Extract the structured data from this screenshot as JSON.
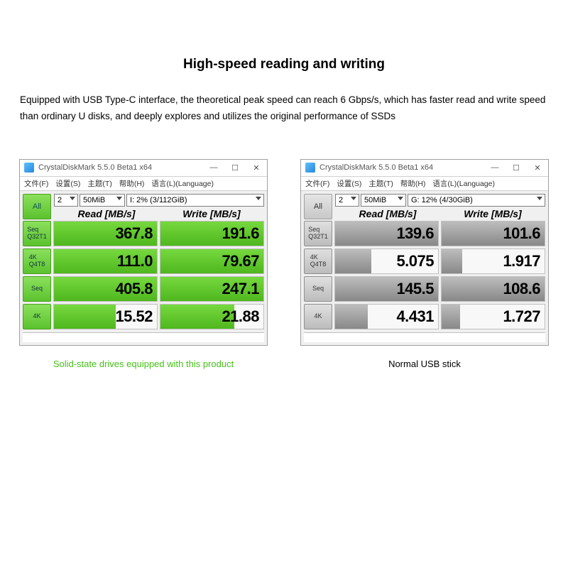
{
  "heading": "High-speed reading and writing",
  "description": "Equipped with USB Type-C interface, the theoretical peak speed can reach 6 Gbps/s, which has faster read and write speed than ordinary U disks, and deeply explores and utilizes the original performance of SSDs",
  "colors": {
    "green_bar": "#5cc22e",
    "gray_bar": "#9a9a9a",
    "caption_green": "#46c216",
    "caption_black": "#000000",
    "window_border": "#a0a0a0",
    "background": "#ffffff"
  },
  "shared": {
    "app_title": "CrystalDiskMark 5.5.0 Beta1 x64",
    "menu_items": [
      "文件(F)",
      "设置(S)",
      "主题(T)",
      "帮助(H)",
      "语言(L)(Language)"
    ],
    "all_btn": "All",
    "sel_runs": "2",
    "sel_size": "50MiB",
    "col_read": "Read [MB/s]",
    "col_write": "Write [MB/s]",
    "row_labels": [
      "Seq\nQ32T1",
      "4K\nQ4T8",
      "Seq",
      "4K"
    ]
  },
  "left": {
    "drive": "I: 2% (3/112GiB)",
    "caption": "Solid-state drives equipped with this product",
    "theme": "green",
    "rows": [
      {
        "read": "367.8",
        "read_pct": 100,
        "write": "191.6",
        "write_pct": 100
      },
      {
        "read": "111.0",
        "read_pct": 100,
        "write": "79.67",
        "write_pct": 100
      },
      {
        "read": "405.8",
        "read_pct": 100,
        "write": "247.1",
        "write_pct": 100
      },
      {
        "read": "15.52",
        "read_pct": 60,
        "write": "21.88",
        "write_pct": 72
      }
    ]
  },
  "right": {
    "drive": "G: 12% (4/30GiB)",
    "caption": "Normal USB stick",
    "theme": "gray",
    "rows": [
      {
        "read": "139.6",
        "read_pct": 100,
        "write": "101.6",
        "write_pct": 100
      },
      {
        "read": "5.075",
        "read_pct": 35,
        "write": "1.917",
        "write_pct": 20
      },
      {
        "read": "145.5",
        "read_pct": 100,
        "write": "108.6",
        "write_pct": 100
      },
      {
        "read": "4.431",
        "read_pct": 32,
        "write": "1.727",
        "write_pct": 18
      }
    ]
  }
}
